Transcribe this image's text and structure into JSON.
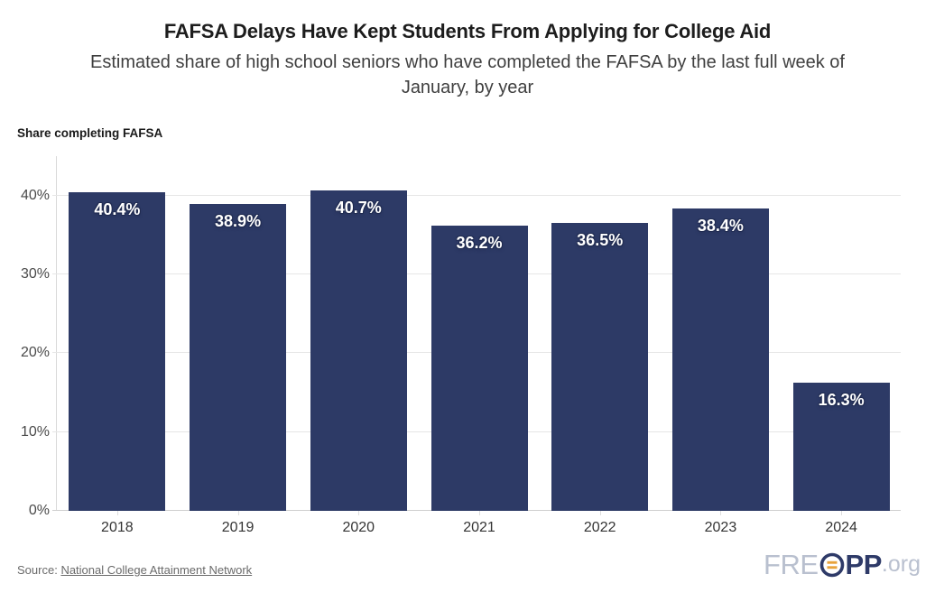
{
  "header": {
    "title": "FAFSA Delays Have Kept Students From Applying for College Aid",
    "subtitle_line1": "Estimated share of high school seniors who have completed the FAFSA by the last full week of",
    "subtitle_line2": "January, by year"
  },
  "chart_data": {
    "type": "bar",
    "title": "FAFSA Delays Have Kept Students From Applying for College Aid",
    "axis_title": "Share completing FAFSA",
    "xlabel": "",
    "ylabel": "Share completing FAFSA",
    "categories": [
      "2018",
      "2019",
      "2020",
      "2021",
      "2022",
      "2023",
      "2024"
    ],
    "values": [
      40.4,
      38.9,
      40.7,
      36.2,
      36.5,
      38.4,
      16.3
    ],
    "bar_labels": [
      "40.4%",
      "38.9%",
      "40.7%",
      "36.2%",
      "36.5%",
      "38.4%",
      "16.3%"
    ],
    "yticks": [
      {
        "value": 0,
        "label": "0%"
      },
      {
        "value": 10,
        "label": "10%"
      },
      {
        "value": 20,
        "label": "20%"
      },
      {
        "value": 30,
        "label": "30%"
      },
      {
        "value": 40,
        "label": "40%"
      }
    ],
    "ylim": [
      0,
      45
    ],
    "grid": true,
    "legend_position": "none",
    "bar_color": "#2d3a66",
    "label_color": "#ffffff"
  },
  "footer": {
    "source_prefix": "Source:",
    "source_link": "National College Attainment Network",
    "logo": {
      "part1": "FRE",
      "part2": "PP",
      "suffix": ".org",
      "navy": "#2e3a68",
      "orange": "#e8a33b",
      "gray": "#b9c0cf"
    }
  }
}
